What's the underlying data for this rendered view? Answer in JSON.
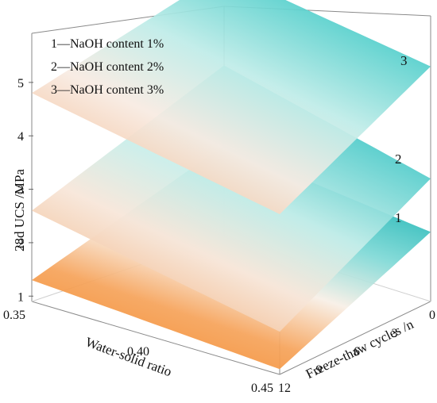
{
  "chart_data": {
    "type": "surface",
    "title": "",
    "z_axis": {
      "label": "28d UCS /MPa",
      "ticks": [
        "1",
        "2",
        "3",
        "4",
        "5"
      ],
      "range": [
        0.9,
        5.8
      ]
    },
    "x_axis": {
      "label": "Water-solid ratio",
      "ticks": [
        "0.35",
        "0.40",
        "0.45"
      ],
      "range": [
        0.35,
        0.45
      ]
    },
    "y_axis": {
      "label": "Freeze-thaw cycles /n",
      "ticks": [
        "0",
        "3",
        "6",
        "9",
        "12"
      ],
      "range": [
        0,
        12
      ]
    },
    "legend": {
      "placement": "top-left",
      "entries": [
        "1—NaOH content 1%",
        "2—NaOH content 2%",
        "3—NaOH content 3%"
      ]
    },
    "surface_labels": [
      "1",
      "2",
      "3"
    ],
    "series": [
      {
        "name": "NaOH content 1%",
        "label": "1",
        "corners": {
          "ws_0.35_ft_12": 1.3,
          "ws_0.45_ft_12": 1.0,
          "ws_0.45_ft_0": 2.2,
          "ws_0.35_ft_0": 2.6
        }
      },
      {
        "name": "NaOH content 2%",
        "label": "2",
        "corners": {
          "ws_0.35_ft_12": 2.6,
          "ws_0.45_ft_12": 1.7,
          "ws_0.45_ft_0": 3.2,
          "ws_0.35_ft_0": 4.1
        }
      },
      {
        "name": "NaOH content 3%",
        "label": "3",
        "corners": {
          "ws_0.35_ft_12": 4.8,
          "ws_0.45_ft_12": 3.9,
          "ws_0.45_ft_0": 5.3,
          "ws_0.35_ft_0": 5.85
        }
      }
    ],
    "colors": {
      "high": "#15b9b9",
      "mid": "#f7f2ea",
      "low": "#f07a10"
    }
  }
}
